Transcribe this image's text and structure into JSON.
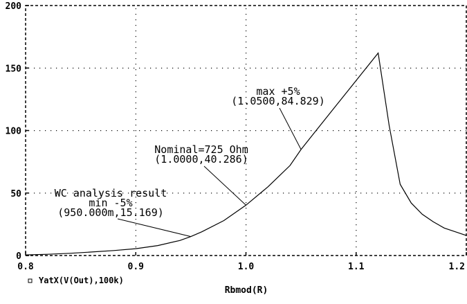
{
  "chart_data": {
    "type": "line",
    "xlabel": "Rbmod(R)",
    "ylabel": "",
    "xlim": [
      0.8,
      1.2
    ],
    "ylim": [
      0,
      200
    ],
    "grid": true,
    "x_ticks": [
      0.8,
      0.9,
      1.0,
      1.1,
      1.2
    ],
    "x_tick_labels": [
      "0.8",
      "0.9",
      "1.0",
      "1.1",
      "1.2"
    ],
    "y_ticks": [
      0,
      50,
      100,
      150,
      200
    ],
    "y_tick_labels": [
      "0",
      "50",
      "100",
      "150",
      "200"
    ],
    "series": [
      {
        "name": "YatX(V(Out),100k)",
        "color": "#000000",
        "marker": "square",
        "x": [
          0.8,
          0.82,
          0.84,
          0.86,
          0.88,
          0.9,
          0.92,
          0.94,
          0.95,
          0.96,
          0.98,
          1.0,
          1.02,
          1.04,
          1.05,
          1.06,
          1.08,
          1.1,
          1.12,
          1.13,
          1.14,
          1.15,
          1.16,
          1.17,
          1.18,
          1.19,
          1.2
        ],
        "values": [
          0.5,
          1,
          1.8,
          2.8,
          4,
          5.5,
          8,
          12,
          15.169,
          19,
          28,
          40.286,
          55,
          72,
          84.829,
          96,
          118,
          140,
          162,
          104,
          57,
          42,
          33,
          27,
          22,
          19,
          16
        ]
      }
    ],
    "annotations": [
      {
        "lines": [
          "WC analysis result",
          "min  -5%",
          "(950.000m,15.169)"
        ],
        "x": 0.95,
        "y": 15.169
      },
      {
        "lines": [
          "Nominal=725 Ohm",
          "(1.0000,40.286)"
        ],
        "x": 1.0,
        "y": 40.286
      },
      {
        "lines": [
          "max  +5%",
          "(1.0500,84.829)"
        ],
        "x": 1.05,
        "y": 84.829
      }
    ]
  }
}
